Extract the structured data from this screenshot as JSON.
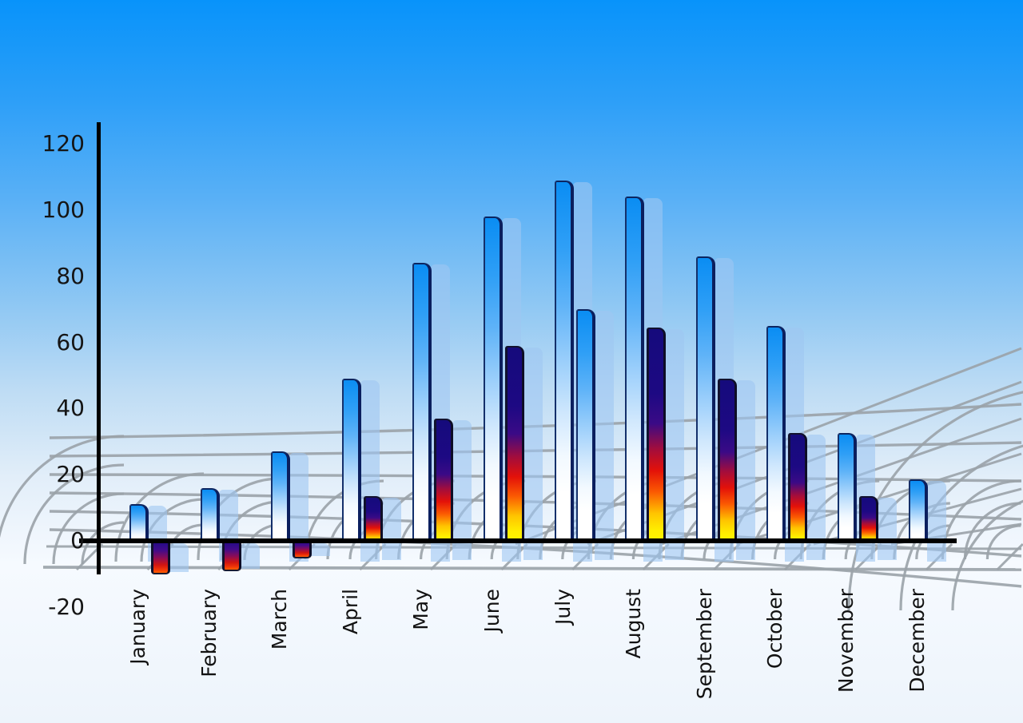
{
  "chart_data": {
    "type": "bar",
    "title": "",
    "xlabel": "",
    "ylabel": "",
    "categories": [
      "January",
      "February",
      "March",
      "April",
      "May",
      "June",
      "July",
      "August",
      "September",
      "October",
      "November",
      "December"
    ],
    "series": [
      {
        "name": "blue-gradient-series",
        "values": [
          11,
          16,
          27,
          49,
          84,
          98,
          109,
          104,
          86,
          65,
          32.5,
          18.5
        ]
      },
      {
        "name": "flame-gradient-series",
        "values": [
          -10,
          -9,
          -5,
          13.5,
          37,
          59,
          70,
          64.5,
          49,
          32.5,
          13.5,
          null
        ],
        "bar_styles": [
          "flame",
          "flame",
          "flame",
          "flame",
          "flame",
          "flame",
          "blue",
          "flame",
          "flame",
          "flame",
          "flame",
          null
        ]
      }
    ],
    "ylim": [
      -20,
      120
    ],
    "y_ticks": [
      120,
      100,
      80,
      60,
      40,
      20,
      0,
      -20
    ],
    "legend": "none",
    "grid": "gray perspective wireframe behind bars",
    "bar_effects": "each bar has a translucent light-blue drop-shadow copy offset to the right; shadows extend below the zero axis"
  },
  "colors": {
    "sky_top": "#0a95fa",
    "sky_bottom": "#edf4fb",
    "bar_blue_top": "#0a8df3",
    "bar_blue_bottom": "#ffffff",
    "flame_navy": "#150a7c",
    "flame_red": "#e31109",
    "flame_yellow": "#ffee00",
    "shadow_bar": "#9ec7f2",
    "grid_line": "#9aa2a9",
    "axis_line": "#000000",
    "label_text": "#151515"
  }
}
